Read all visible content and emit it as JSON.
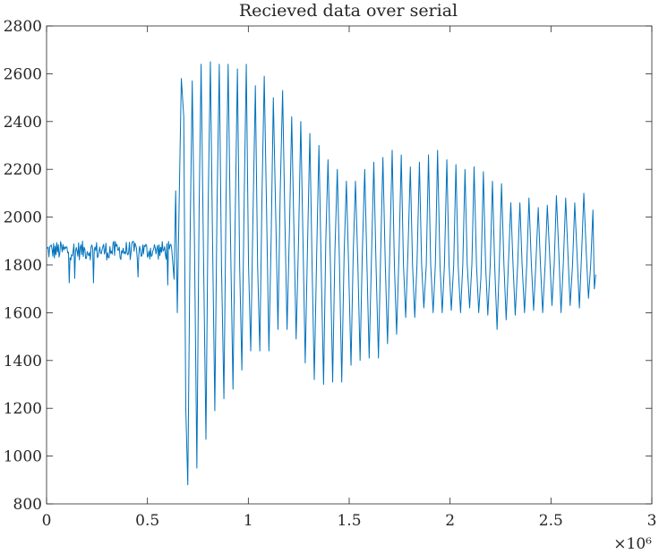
{
  "chart_data": {
    "type": "line",
    "title": "Recieved data over serial",
    "xlabel": "",
    "ylabel": "",
    "xlim": [
      0,
      3000000
    ],
    "ylim": [
      800,
      2800
    ],
    "x_ticks": [
      0,
      500000,
      1000000,
      1500000,
      2000000,
      2500000,
      3000000
    ],
    "x_tick_labels": [
      "0",
      "0.5",
      "1",
      "1.5",
      "2",
      "2.5",
      "3"
    ],
    "x_exponent_label": "×10⁶",
    "y_ticks": [
      800,
      1000,
      1200,
      1400,
      1600,
      1800,
      2000,
      2200,
      2400,
      2600,
      2800
    ],
    "y_tick_labels": [
      "800",
      "1000",
      "1200",
      "1400",
      "1600",
      "1800",
      "2000",
      "2200",
      "2400",
      "2600",
      "2800"
    ],
    "grid": false,
    "line_color": "#0072bd",
    "series": [
      {
        "noise_segment": {
          "x_start": 0,
          "x_end": 620000,
          "mean": 1860,
          "amplitude": 40,
          "samples": 160
        },
        "points": [
          [
            620000,
            1870
          ],
          [
            632000,
            1740
          ],
          [
            640000,
            2110
          ],
          [
            648000,
            1600
          ],
          [
            658000,
            2100
          ],
          [
            668000,
            2580
          ],
          [
            680000,
            2420
          ],
          [
            690000,
            1200
          ],
          [
            700000,
            880
          ],
          [
            712000,
            1950
          ],
          [
            722000,
            2570
          ],
          [
            733000,
            1900
          ],
          [
            745000,
            950
          ],
          [
            756000,
            2020
          ],
          [
            766000,
            2640
          ],
          [
            777000,
            1900
          ],
          [
            790000,
            1070
          ],
          [
            801000,
            2050
          ],
          [
            812000,
            2650
          ],
          [
            822000,
            1950
          ],
          [
            834000,
            1190
          ],
          [
            845000,
            2050
          ],
          [
            856000,
            2640
          ],
          [
            867000,
            1800
          ],
          [
            879000,
            1240
          ],
          [
            890000,
            2100
          ],
          [
            900000,
            2640
          ],
          [
            912000,
            1900
          ],
          [
            924000,
            1280
          ],
          [
            935000,
            2000
          ],
          [
            946000,
            2620
          ],
          [
            957000,
            1800
          ],
          [
            968000,
            1360
          ],
          [
            980000,
            2100
          ],
          [
            990000,
            2640
          ],
          [
            1001000,
            1800
          ],
          [
            1012000,
            1440
          ],
          [
            1023000,
            2000
          ],
          [
            1035000,
            2550
          ],
          [
            1046000,
            1800
          ],
          [
            1057000,
            1440
          ],
          [
            1068000,
            2100
          ],
          [
            1079000,
            2590
          ],
          [
            1091000,
            2000
          ],
          [
            1102000,
            1440
          ],
          [
            1113000,
            1900
          ],
          [
            1124000,
            2500
          ],
          [
            1136000,
            2000
          ],
          [
            1147000,
            1530
          ],
          [
            1158000,
            2100
          ],
          [
            1170000,
            2530
          ],
          [
            1181000,
            2000
          ],
          [
            1192000,
            1530
          ],
          [
            1204000,
            1950
          ],
          [
            1215000,
            2420
          ],
          [
            1226000,
            1950
          ],
          [
            1237000,
            1490
          ],
          [
            1249000,
            1900
          ],
          [
            1260000,
            2400
          ],
          [
            1271000,
            1900
          ],
          [
            1282000,
            1390
          ],
          [
            1294000,
            1900
          ],
          [
            1305000,
            2350
          ],
          [
            1316000,
            1800
          ],
          [
            1327000,
            1320
          ],
          [
            1339000,
            1850
          ],
          [
            1350000,
            2300
          ],
          [
            1361000,
            1800
          ],
          [
            1373000,
            1300
          ],
          [
            1384000,
            1900
          ],
          [
            1395000,
            2240
          ],
          [
            1407000,
            1800
          ],
          [
            1418000,
            1310
          ],
          [
            1429000,
            1850
          ],
          [
            1441000,
            2200
          ],
          [
            1452000,
            1800
          ],
          [
            1463000,
            1310
          ],
          [
            1475000,
            1850
          ],
          [
            1486000,
            2150
          ],
          [
            1497000,
            1800
          ],
          [
            1509000,
            1380
          ],
          [
            1520000,
            1850
          ],
          [
            1531000,
            2150
          ],
          [
            1543000,
            1800
          ],
          [
            1554000,
            1400
          ],
          [
            1565000,
            1850
          ],
          [
            1577000,
            2200
          ],
          [
            1588000,
            1800
          ],
          [
            1599000,
            1410
          ],
          [
            1611000,
            1850
          ],
          [
            1622000,
            2230
          ],
          [
            1633000,
            1800
          ],
          [
            1645000,
            1410
          ],
          [
            1656000,
            1850
          ],
          [
            1667000,
            2250
          ],
          [
            1679000,
            1800
          ],
          [
            1690000,
            1470
          ],
          [
            1701000,
            1850
          ],
          [
            1713000,
            2280
          ],
          [
            1724000,
            1800
          ],
          [
            1735000,
            1510
          ],
          [
            1747000,
            1850
          ],
          [
            1758000,
            2260
          ],
          [
            1769000,
            1800
          ],
          [
            1780000,
            1580
          ],
          [
            1791000,
            1850
          ],
          [
            1803000,
            2210
          ],
          [
            1814000,
            1800
          ],
          [
            1825000,
            1580
          ],
          [
            1836000,
            1800
          ],
          [
            1848000,
            2230
          ],
          [
            1859000,
            1800
          ],
          [
            1870000,
            1620
          ],
          [
            1882000,
            1800
          ],
          [
            1893000,
            2260
          ],
          [
            1904000,
            1800
          ],
          [
            1916000,
            1600
          ],
          [
            1927000,
            1800
          ],
          [
            1938000,
            2280
          ],
          [
            1950000,
            1800
          ],
          [
            1961000,
            1600
          ],
          [
            1972000,
            1800
          ],
          [
            1984000,
            2240
          ],
          [
            1995000,
            1800
          ],
          [
            2006000,
            1610
          ],
          [
            2018000,
            1800
          ],
          [
            2029000,
            2220
          ],
          [
            2040000,
            1800
          ],
          [
            2052000,
            1600
          ],
          [
            2063000,
            1800
          ],
          [
            2074000,
            2200
          ],
          [
            2085000,
            1800
          ],
          [
            2097000,
            1620
          ],
          [
            2108000,
            1800
          ],
          [
            2119000,
            2210
          ],
          [
            2131000,
            1800
          ],
          [
            2142000,
            1600
          ],
          [
            2153000,
            1750
          ],
          [
            2165000,
            2190
          ],
          [
            2176000,
            1800
          ],
          [
            2187000,
            1590
          ],
          [
            2199000,
            1800
          ],
          [
            2210000,
            2150
          ],
          [
            2221000,
            1800
          ],
          [
            2233000,
            1530
          ],
          [
            2244000,
            1800
          ],
          [
            2255000,
            2140
          ],
          [
            2267000,
            1800
          ],
          [
            2278000,
            1570
          ],
          [
            2289000,
            1800
          ],
          [
            2301000,
            2060
          ],
          [
            2312000,
            1800
          ],
          [
            2323000,
            1590
          ],
          [
            2335000,
            1800
          ],
          [
            2346000,
            2060
          ],
          [
            2357000,
            1800
          ],
          [
            2369000,
            1600
          ],
          [
            2380000,
            1800
          ],
          [
            2391000,
            2080
          ],
          [
            2403000,
            1800
          ],
          [
            2414000,
            1610
          ],
          [
            2425000,
            1800
          ],
          [
            2437000,
            2040
          ],
          [
            2448000,
            1800
          ],
          [
            2459000,
            1600
          ],
          [
            2471000,
            1800
          ],
          [
            2482000,
            2050
          ],
          [
            2493000,
            1850
          ],
          [
            2505000,
            1630
          ],
          [
            2516000,
            1800
          ],
          [
            2527000,
            2090
          ],
          [
            2539000,
            1850
          ],
          [
            2550000,
            1600
          ],
          [
            2561000,
            1800
          ],
          [
            2573000,
            2080
          ],
          [
            2584000,
            1850
          ],
          [
            2595000,
            1630
          ],
          [
            2607000,
            1800
          ],
          [
            2618000,
            2060
          ],
          [
            2629000,
            1850
          ],
          [
            2641000,
            1620
          ],
          [
            2652000,
            1850
          ],
          [
            2663000,
            2100
          ],
          [
            2675000,
            1850
          ],
          [
            2686000,
            1660
          ],
          [
            2697000,
            1800
          ],
          [
            2708000,
            2030
          ],
          [
            2715000,
            1700
          ],
          [
            2722000,
            1760
          ]
        ]
      }
    ]
  }
}
